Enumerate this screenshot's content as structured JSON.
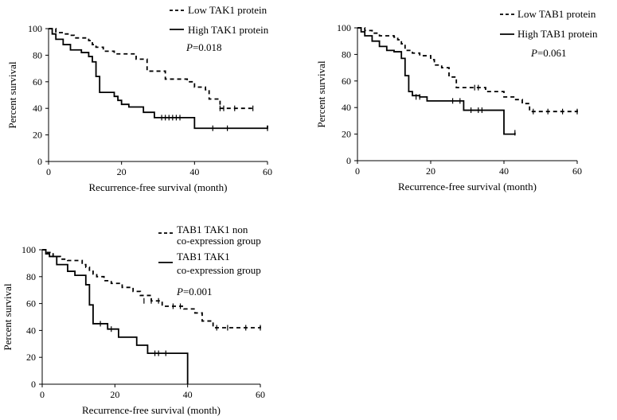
{
  "chart_data": [
    {
      "type": "line",
      "subtype": "kaplan-meier",
      "xlabel": "Recurrence-free survival (month)",
      "ylabel": "Percent survival",
      "xlim": [
        0,
        60
      ],
      "ylim": [
        0,
        100
      ],
      "xticks": [
        0,
        20,
        40,
        60
      ],
      "yticks": [
        0,
        20,
        40,
        60,
        80,
        100
      ],
      "legend_position": "top-right",
      "annotation": "P=0.018",
      "series": [
        {
          "name": "Low TAK1 protein",
          "style": "dashed",
          "x": [
            0,
            2,
            4,
            6,
            7,
            9,
            11,
            12,
            13,
            15,
            18,
            22,
            24,
            27,
            32,
            38,
            40,
            42,
            43,
            44,
            47,
            48,
            51,
            56
          ],
          "y": [
            100,
            97,
            96,
            95,
            93,
            93,
            91,
            88,
            86,
            83,
            81,
            81,
            77,
            68,
            62,
            60,
            56,
            56,
            54,
            47,
            40,
            40,
            40,
            40
          ],
          "censored_x": [
            47,
            48,
            51,
            56
          ],
          "censored_y": [
            40,
            40,
            40,
            40
          ]
        },
        {
          "name": "High TAK1 protein",
          "style": "solid",
          "x": [
            0,
            1,
            2,
            4,
            6,
            9,
            11,
            12,
            13,
            14,
            17,
            18,
            19,
            20,
            22,
            26,
            29,
            40,
            60
          ],
          "y": [
            100,
            96,
            92,
            88,
            84,
            82,
            79,
            75,
            64,
            52,
            52,
            49,
            46,
            43,
            41,
            37,
            33,
            25,
            27
          ],
          "censored_x": [
            31,
            32,
            33,
            34,
            35,
            36,
            45,
            49,
            60
          ],
          "censored_y": [
            33,
            33,
            33,
            33,
            33,
            33,
            25,
            25,
            25
          ]
        }
      ]
    },
    {
      "type": "line",
      "subtype": "kaplan-meier",
      "xlabel": "Recurrence-free survival (month)",
      "ylabel": "Percent survival",
      "xlim": [
        0,
        60
      ],
      "ylim": [
        0,
        100
      ],
      "xticks": [
        0,
        20,
        40,
        60
      ],
      "yticks": [
        0,
        20,
        40,
        60,
        80,
        100
      ],
      "legend_position": "top-right",
      "annotation": "P=0.061",
      "series": [
        {
          "name": "Low TAB1 protein",
          "style": "dashed",
          "x": [
            0,
            2,
            4,
            6,
            10,
            11,
            12,
            13,
            15,
            17,
            20,
            21,
            23,
            25,
            27,
            32,
            35,
            40,
            43,
            45,
            47,
            60
          ],
          "y": [
            100,
            98,
            96,
            94,
            93,
            91,
            88,
            83,
            81,
            79,
            76,
            72,
            70,
            63,
            55,
            55,
            52,
            48,
            46,
            43,
            37,
            38
          ],
          "censored_x": [
            32,
            33,
            48,
            52,
            56,
            60
          ],
          "censored_y": [
            55,
            55,
            37,
            37,
            37,
            37
          ]
        },
        {
          "name": "High TAB1 protein",
          "style": "solid",
          "x": [
            0,
            1,
            2,
            4,
            6,
            8,
            10,
            12,
            13,
            14,
            15,
            17,
            19,
            29,
            40,
            43
          ],
          "y": [
            100,
            97,
            94,
            90,
            86,
            83,
            82,
            77,
            64,
            52,
            49,
            48,
            45,
            38,
            20,
            21
          ],
          "censored_x": [
            16,
            17,
            26,
            28,
            31,
            33,
            34,
            43
          ],
          "censored_y": [
            48,
            48,
            45,
            45,
            38,
            38,
            38,
            21
          ]
        }
      ]
    },
    {
      "type": "line",
      "subtype": "kaplan-meier",
      "xlabel": "Recurrence-free survival (month)",
      "ylabel": "Percent survival",
      "xlim": [
        0,
        60
      ],
      "ylim": [
        0,
        100
      ],
      "xticks": [
        0,
        20,
        40,
        60
      ],
      "yticks": [
        0,
        20,
        40,
        60,
        80,
        100
      ],
      "legend_position": "top-right",
      "annotation": "P=0.001",
      "series": [
        {
          "name": "TAB1 TAK1 non co-expression group",
          "name_lines": [
            "TAB1 TAK1 non",
            "co-expression group"
          ],
          "style": "dashed",
          "x": [
            0,
            1,
            3,
            5,
            7,
            11,
            12,
            13,
            14,
            15,
            17,
            19,
            22,
            25,
            27,
            30,
            33,
            39,
            42,
            44,
            47,
            60
          ],
          "y": [
            100,
            98,
            95,
            93,
            92,
            89,
            87,
            84,
            82,
            80,
            77,
            75,
            72,
            69,
            66,
            62,
            58,
            56,
            53,
            47,
            42,
            43
          ],
          "censored_x": [
            28,
            30,
            32,
            36,
            38,
            48,
            51,
            56,
            60
          ],
          "censored_y": [
            62,
            62,
            62,
            58,
            58,
            42,
            42,
            42,
            42
          ]
        },
        {
          "name": "TAB1 TAK1 co-expression group",
          "name_lines": [
            "TAB1 TAK1",
            "co-expression group"
          ],
          "style": "solid",
          "x": [
            0,
            1,
            2,
            4,
            7,
            9,
            12,
            13,
            14,
            18,
            21,
            26,
            29,
            40
          ],
          "y": [
            100,
            97,
            95,
            89,
            84,
            81,
            74,
            59,
            45,
            41,
            35,
            29,
            23,
            0
          ],
          "censored_x": [
            16,
            19,
            31,
            32,
            34
          ],
          "censored_y": [
            45,
            41,
            23,
            23,
            23
          ]
        }
      ]
    }
  ]
}
